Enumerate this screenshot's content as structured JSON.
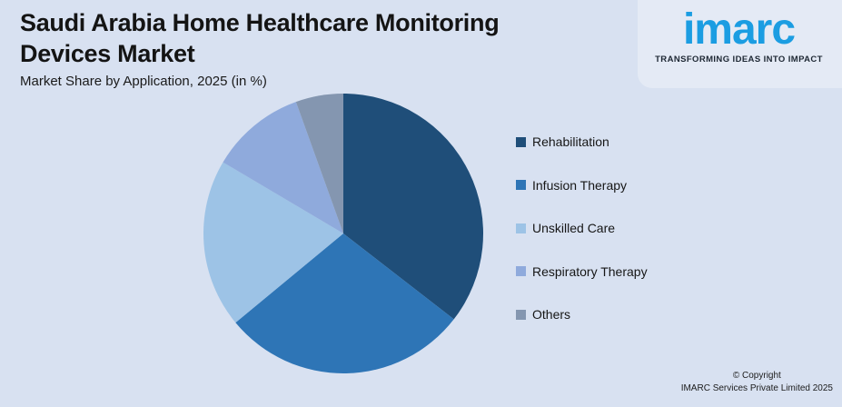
{
  "page": {
    "background": "#d8e1f1"
  },
  "header": {
    "title_line1": "Saudi Arabia Home Healthcare Monitoring",
    "title_line2": "Devices Market",
    "subtitle": "Market Share by Application, 2025 (in %)"
  },
  "logo": {
    "wordmark": "imarc",
    "tagline": "TRANSFORMING IDEAS INTO IMPACT",
    "wordmark_color": "#1b9de2",
    "tagline_color": "#1d2733"
  },
  "legend": {
    "items": [
      {
        "label": "Rehabilitation",
        "color": "#1f4e79"
      },
      {
        "label": "Infusion Therapy",
        "color": "#2e75b6"
      },
      {
        "label": "Unskilled Care",
        "color": "#9dc3e6"
      },
      {
        "label": "Respiratory Therapy",
        "color": "#8faadc"
      },
      {
        "label": "Others",
        "color": "#8496b0"
      }
    ]
  },
  "chart_data": {
    "type": "pie",
    "title": "Saudi Arabia Home Healthcare Monitoring Devices Market",
    "subtitle": "Market Share by Application, 2025 (in %)",
    "categories": [
      "Rehabilitation",
      "Infusion Therapy",
      "Unskilled Care",
      "Respiratory Therapy",
      "Others"
    ],
    "values": [
      35.5,
      28.5,
      19.5,
      11,
      5.5
    ],
    "unit": "%",
    "colors": [
      "#1f4e79",
      "#2e75b6",
      "#9dc3e6",
      "#8faadc",
      "#8496b0"
    ],
    "start_angle_deg": 0,
    "direction": "clockwise",
    "legend_position": "right",
    "data_labels": false
  },
  "footer": {
    "copyright_line1": "© Copyright",
    "copyright_line2": "IMARC Services Private Limited 2025"
  }
}
